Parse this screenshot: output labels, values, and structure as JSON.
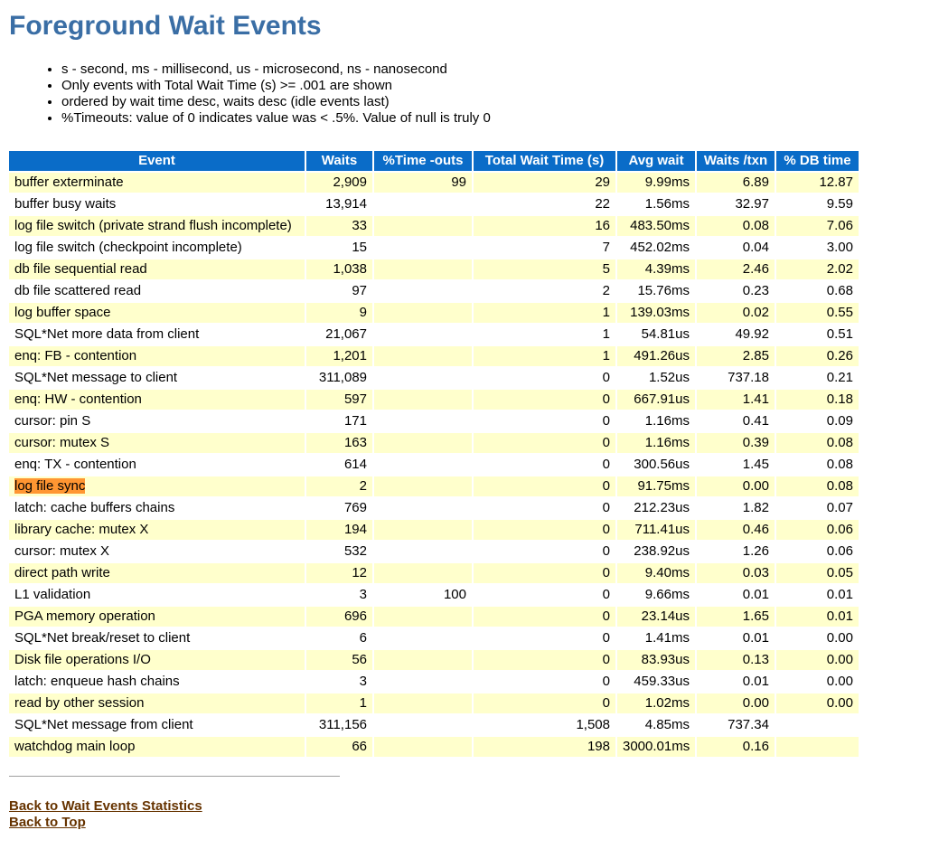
{
  "page": {
    "title": "Foreground Wait Events",
    "notes": [
      "s - second, ms - millisecond, us - microsecond, ns - nanosecond",
      "Only events with Total Wait Time (s) >= .001 are shown",
      "ordered by wait time desc, waits desc (idle events last)",
      "%Timeouts: value of 0 indicates value was < .5%. Value of null is truly 0"
    ]
  },
  "colors": {
    "header-bg": "#0a6cc8",
    "row-alt-bg": "#ffffcc",
    "title-color": "#3a6ea5",
    "link-color": "#663300",
    "find-highlight-bg": "#ff9632"
  },
  "table": {
    "columns": [
      "Event",
      "Waits",
      "%Time -outs",
      "Total Wait Time (s)",
      "Avg wait",
      "Waits /txn",
      "% DB time"
    ],
    "rows": [
      {
        "event": "buffer exterminate",
        "waits": "2,909",
        "pct_timeouts": "99",
        "total_wait_s": "29",
        "avg_wait": "9.99ms",
        "waits_per_txn": "6.89",
        "pct_db_time": "12.87",
        "highlighted": false
      },
      {
        "event": "buffer busy waits",
        "waits": "13,914",
        "pct_timeouts": "",
        "total_wait_s": "22",
        "avg_wait": "1.56ms",
        "waits_per_txn": "32.97",
        "pct_db_time": "9.59",
        "highlighted": false
      },
      {
        "event": "log file switch (private strand flush incomplete)",
        "waits": "33",
        "pct_timeouts": "",
        "total_wait_s": "16",
        "avg_wait": "483.50ms",
        "waits_per_txn": "0.08",
        "pct_db_time": "7.06",
        "highlighted": false
      },
      {
        "event": "log file switch (checkpoint incomplete)",
        "waits": "15",
        "pct_timeouts": "",
        "total_wait_s": "7",
        "avg_wait": "452.02ms",
        "waits_per_txn": "0.04",
        "pct_db_time": "3.00",
        "highlighted": false
      },
      {
        "event": "db file sequential read",
        "waits": "1,038",
        "pct_timeouts": "",
        "total_wait_s": "5",
        "avg_wait": "4.39ms",
        "waits_per_txn": "2.46",
        "pct_db_time": "2.02",
        "highlighted": false
      },
      {
        "event": "db file scattered read",
        "waits": "97",
        "pct_timeouts": "",
        "total_wait_s": "2",
        "avg_wait": "15.76ms",
        "waits_per_txn": "0.23",
        "pct_db_time": "0.68",
        "highlighted": false
      },
      {
        "event": "log buffer space",
        "waits": "9",
        "pct_timeouts": "",
        "total_wait_s": "1",
        "avg_wait": "139.03ms",
        "waits_per_txn": "0.02",
        "pct_db_time": "0.55",
        "highlighted": false
      },
      {
        "event": "SQL*Net more data from client",
        "waits": "21,067",
        "pct_timeouts": "",
        "total_wait_s": "1",
        "avg_wait": "54.81us",
        "waits_per_txn": "49.92",
        "pct_db_time": "0.51",
        "highlighted": false
      },
      {
        "event": "enq: FB - contention",
        "waits": "1,201",
        "pct_timeouts": "",
        "total_wait_s": "1",
        "avg_wait": "491.26us",
        "waits_per_txn": "2.85",
        "pct_db_time": "0.26",
        "highlighted": false
      },
      {
        "event": "SQL*Net message to client",
        "waits": "311,089",
        "pct_timeouts": "",
        "total_wait_s": "0",
        "avg_wait": "1.52us",
        "waits_per_txn": "737.18",
        "pct_db_time": "0.21",
        "highlighted": false
      },
      {
        "event": "enq: HW - contention",
        "waits": "597",
        "pct_timeouts": "",
        "total_wait_s": "0",
        "avg_wait": "667.91us",
        "waits_per_txn": "1.41",
        "pct_db_time": "0.18",
        "highlighted": false
      },
      {
        "event": "cursor: pin S",
        "waits": "171",
        "pct_timeouts": "",
        "total_wait_s": "0",
        "avg_wait": "1.16ms",
        "waits_per_txn": "0.41",
        "pct_db_time": "0.09",
        "highlighted": false
      },
      {
        "event": "cursor: mutex S",
        "waits": "163",
        "pct_timeouts": "",
        "total_wait_s": "0",
        "avg_wait": "1.16ms",
        "waits_per_txn": "0.39",
        "pct_db_time": "0.08",
        "highlighted": false
      },
      {
        "event": "enq: TX - contention",
        "waits": "614",
        "pct_timeouts": "",
        "total_wait_s": "0",
        "avg_wait": "300.56us",
        "waits_per_txn": "1.45",
        "pct_db_time": "0.08",
        "highlighted": false
      },
      {
        "event": "log file sync",
        "waits": "2",
        "pct_timeouts": "",
        "total_wait_s": "0",
        "avg_wait": "91.75ms",
        "waits_per_txn": "0.00",
        "pct_db_time": "0.08",
        "highlighted": true
      },
      {
        "event": "latch: cache buffers chains",
        "waits": "769",
        "pct_timeouts": "",
        "total_wait_s": "0",
        "avg_wait": "212.23us",
        "waits_per_txn": "1.82",
        "pct_db_time": "0.07",
        "highlighted": false
      },
      {
        "event": "library cache: mutex X",
        "waits": "194",
        "pct_timeouts": "",
        "total_wait_s": "0",
        "avg_wait": "711.41us",
        "waits_per_txn": "0.46",
        "pct_db_time": "0.06",
        "highlighted": false
      },
      {
        "event": "cursor: mutex X",
        "waits": "532",
        "pct_timeouts": "",
        "total_wait_s": "0",
        "avg_wait": "238.92us",
        "waits_per_txn": "1.26",
        "pct_db_time": "0.06",
        "highlighted": false
      },
      {
        "event": "direct path write",
        "waits": "12",
        "pct_timeouts": "",
        "total_wait_s": "0",
        "avg_wait": "9.40ms",
        "waits_per_txn": "0.03",
        "pct_db_time": "0.05",
        "highlighted": false
      },
      {
        "event": "L1 validation",
        "waits": "3",
        "pct_timeouts": "100",
        "total_wait_s": "0",
        "avg_wait": "9.66ms",
        "waits_per_txn": "0.01",
        "pct_db_time": "0.01",
        "highlighted": false
      },
      {
        "event": "PGA memory operation",
        "waits": "696",
        "pct_timeouts": "",
        "total_wait_s": "0",
        "avg_wait": "23.14us",
        "waits_per_txn": "1.65",
        "pct_db_time": "0.01",
        "highlighted": false
      },
      {
        "event": "SQL*Net break/reset to client",
        "waits": "6",
        "pct_timeouts": "",
        "total_wait_s": "0",
        "avg_wait": "1.41ms",
        "waits_per_txn": "0.01",
        "pct_db_time": "0.00",
        "highlighted": false
      },
      {
        "event": "Disk file operations I/O",
        "waits": "56",
        "pct_timeouts": "",
        "total_wait_s": "0",
        "avg_wait": "83.93us",
        "waits_per_txn": "0.13",
        "pct_db_time": "0.00",
        "highlighted": false
      },
      {
        "event": "latch: enqueue hash chains",
        "waits": "3",
        "pct_timeouts": "",
        "total_wait_s": "0",
        "avg_wait": "459.33us",
        "waits_per_txn": "0.01",
        "pct_db_time": "0.00",
        "highlighted": false
      },
      {
        "event": "read by other session",
        "waits": "1",
        "pct_timeouts": "",
        "total_wait_s": "0",
        "avg_wait": "1.02ms",
        "waits_per_txn": "0.00",
        "pct_db_time": "0.00",
        "highlighted": false
      },
      {
        "event": "SQL*Net message from client",
        "waits": "311,156",
        "pct_timeouts": "",
        "total_wait_s": "1,508",
        "avg_wait": "4.85ms",
        "waits_per_txn": "737.34",
        "pct_db_time": "",
        "highlighted": false
      },
      {
        "event": "watchdog main loop",
        "waits": "66",
        "pct_timeouts": "",
        "total_wait_s": "198",
        "avg_wait": "3000.01ms",
        "waits_per_txn": "0.16",
        "pct_db_time": "",
        "highlighted": false
      }
    ]
  },
  "links": [
    {
      "label": "Back to Wait Events Statistics"
    },
    {
      "label": "Back to Top"
    }
  ]
}
